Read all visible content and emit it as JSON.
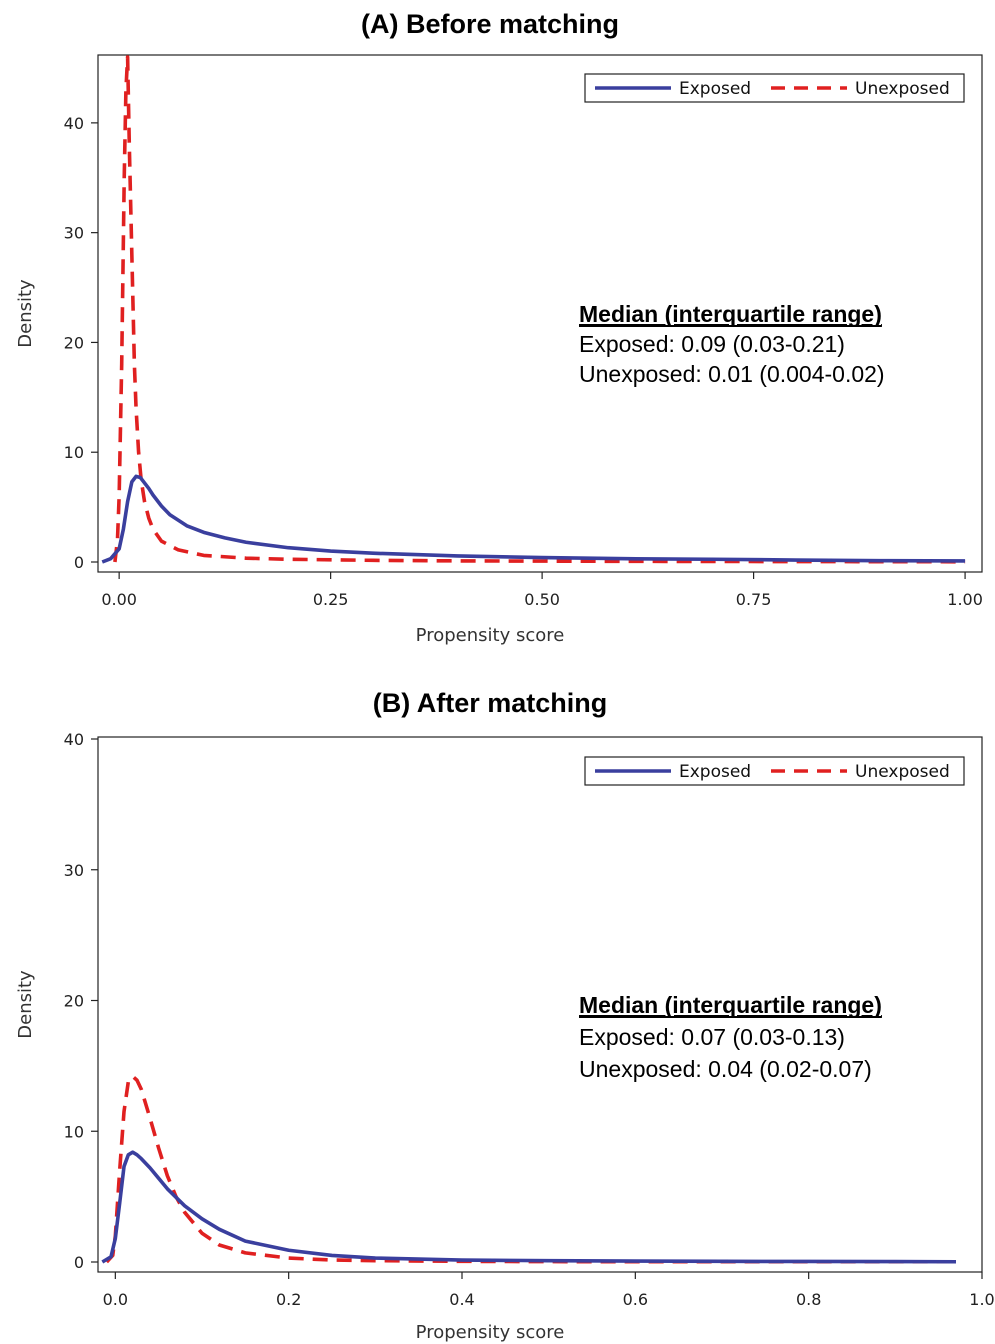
{
  "chart_data": [
    {
      "type": "line",
      "title": "(A) Before matching",
      "xlabel": "Propensity score",
      "ylabel": "Density",
      "xlim": [
        -0.025,
        1.02
      ],
      "ylim": [
        0,
        46
      ],
      "x_ticks": [
        0.0,
        0.25,
        0.5,
        0.75,
        1.0
      ],
      "x_tick_labels": [
        "0.00",
        "0.25",
        "0.50",
        "0.75",
        "1.00"
      ],
      "y_ticks": [
        0,
        10,
        20,
        30,
        40
      ],
      "y_tick_labels": [
        "0",
        "10",
        "20",
        "30",
        "40"
      ],
      "legend": {
        "position": "top-right",
        "entries": [
          "Exposed",
          "Unexposed"
        ]
      },
      "annotation": {
        "heading": "Median (interquartile range)",
        "lines": [
          "Exposed: 0.09 (0.03-0.21)",
          "Unexposed: 0.01 (0.004-0.02)"
        ]
      },
      "series": [
        {
          "name": "Exposed",
          "color": "#3a3f9e",
          "style": "solid",
          "x": [
            -0.02,
            -0.01,
            0.0,
            0.005,
            0.01,
            0.015,
            0.02,
            0.025,
            0.03,
            0.035,
            0.04,
            0.05,
            0.06,
            0.08,
            0.1,
            0.125,
            0.15,
            0.2,
            0.25,
            0.3,
            0.4,
            0.5,
            0.6,
            0.7,
            0.8,
            0.9,
            1.0
          ],
          "y": [
            0.0,
            0.3,
            1.2,
            3.0,
            5.5,
            7.3,
            7.8,
            7.7,
            7.2,
            6.7,
            6.1,
            5.1,
            4.3,
            3.3,
            2.7,
            2.2,
            1.8,
            1.3,
            1.0,
            0.8,
            0.55,
            0.4,
            0.3,
            0.25,
            0.18,
            0.12,
            0.1
          ]
        },
        {
          "name": "Unexposed",
          "color": "#e02020",
          "style": "dashed",
          "x": [
            -0.005,
            -0.002,
            0.0,
            0.003,
            0.006,
            0.008,
            0.01,
            0.012,
            0.015,
            0.018,
            0.02,
            0.023,
            0.026,
            0.03,
            0.035,
            0.04,
            0.05,
            0.07,
            0.1,
            0.15,
            0.2,
            0.3,
            0.4,
            0.5,
            0.6,
            0.7,
            0.8,
            0.9,
            1.0
          ],
          "y": [
            0.0,
            2.0,
            6.0,
            18.0,
            35.0,
            43.0,
            46.0,
            38.0,
            28.0,
            18.0,
            14.0,
            10.0,
            7.5,
            5.5,
            4.0,
            3.0,
            1.9,
            1.1,
            0.6,
            0.35,
            0.25,
            0.15,
            0.1,
            0.08,
            0.06,
            0.05,
            0.04,
            0.03,
            0.02
          ]
        }
      ]
    },
    {
      "type": "line",
      "title": "(B) After matching",
      "xlabel": "Propensity score",
      "ylabel": "Density",
      "xlim": [
        -0.02,
        1.0
      ],
      "ylim": [
        0,
        40
      ],
      "x_ticks": [
        0.0,
        0.2,
        0.4,
        0.6,
        0.8,
        1.0
      ],
      "x_tick_labels": [
        "0.0",
        "0.2",
        "0.4",
        "0.6",
        "0.8",
        "1.0"
      ],
      "y_ticks": [
        0,
        10,
        20,
        30,
        40
      ],
      "y_tick_labels": [
        "0",
        "10",
        "20",
        "30",
        "40"
      ],
      "legend": {
        "position": "top-right",
        "entries": [
          "Exposed",
          "Unexposed"
        ]
      },
      "annotation": {
        "heading": "Median (interquartile range)",
        "lines": [
          "Exposed: 0.07 (0.03-0.13)",
          "Unexposed: 0.04 (0.02-0.07)"
        ]
      },
      "series": [
        {
          "name": "Exposed",
          "color": "#3a3f9e",
          "style": "solid",
          "x": [
            -0.015,
            -0.005,
            0.0,
            0.005,
            0.01,
            0.015,
            0.02,
            0.025,
            0.03,
            0.04,
            0.05,
            0.06,
            0.08,
            0.1,
            0.12,
            0.15,
            0.2,
            0.25,
            0.3,
            0.4,
            0.5,
            0.6,
            0.7,
            0.8,
            0.9,
            0.97
          ],
          "y": [
            0.0,
            0.4,
            1.8,
            4.5,
            7.3,
            8.2,
            8.4,
            8.2,
            7.9,
            7.2,
            6.4,
            5.6,
            4.3,
            3.3,
            2.5,
            1.6,
            0.9,
            0.5,
            0.3,
            0.15,
            0.1,
            0.07,
            0.05,
            0.04,
            0.03,
            0.02
          ]
        },
        {
          "name": "Unexposed",
          "color": "#e02020",
          "style": "dashed",
          "x": [
            -0.01,
            -0.003,
            0.0,
            0.005,
            0.01,
            0.015,
            0.02,
            0.025,
            0.03,
            0.04,
            0.05,
            0.06,
            0.07,
            0.08,
            0.1,
            0.12,
            0.15,
            0.2,
            0.25,
            0.3,
            0.4,
            0.5,
            0.6,
            0.7,
            0.8,
            0.9,
            0.97
          ],
          "y": [
            0.0,
            0.5,
            2.0,
            7.0,
            11.5,
            13.8,
            14.2,
            13.9,
            13.2,
            11.0,
            8.7,
            6.6,
            5.0,
            3.8,
            2.2,
            1.3,
            0.7,
            0.3,
            0.15,
            0.1,
            0.05,
            0.03,
            0.02,
            0.02,
            0.02,
            0.02,
            0.02
          ]
        }
      ]
    }
  ]
}
